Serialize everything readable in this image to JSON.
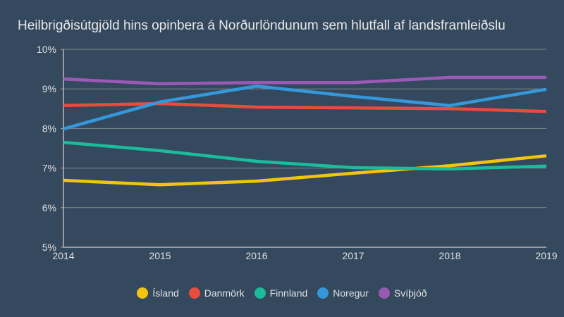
{
  "chart_data": {
    "type": "line",
    "title": "Heilbrigðisútgjöld hins opinbera á Norðurlöndunum sem hlutfall af landsframleiðslu",
    "xlabel": "",
    "ylabel": "",
    "x": [
      "2014",
      "2015",
      "2016",
      "2017",
      "2018",
      "2019"
    ],
    "ylim": [
      5,
      10
    ],
    "y_ticks": [
      "5%",
      "6%",
      "7%",
      "8%",
      "9%",
      "10%"
    ],
    "y_unit": "%",
    "grid": true,
    "legend_position": "bottom",
    "background": "#34495e",
    "series": [
      {
        "name": "Ísland",
        "color": "#f1c40f",
        "values": [
          6.69,
          6.58,
          6.67,
          6.87,
          7.06,
          7.31
        ]
      },
      {
        "name": "Danmörk",
        "color": "#e74c3c",
        "values": [
          8.58,
          8.63,
          8.54,
          8.52,
          8.5,
          8.43
        ]
      },
      {
        "name": "Finnland",
        "color": "#1abc9c",
        "values": [
          7.65,
          7.44,
          7.17,
          7.01,
          6.98,
          7.05
        ]
      },
      {
        "name": "Noregur",
        "color": "#3498db",
        "values": [
          7.99,
          8.67,
          9.07,
          8.81,
          8.58,
          8.99
        ]
      },
      {
        "name": "Svíþjóð",
        "color": "#9b59b6",
        "values": [
          9.25,
          9.13,
          9.16,
          9.16,
          9.29,
          9.29
        ]
      }
    ]
  }
}
